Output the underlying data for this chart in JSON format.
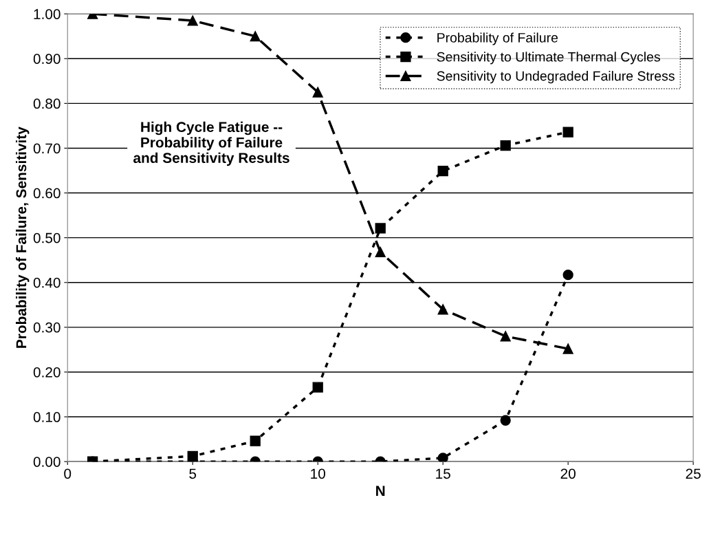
{
  "chart_data": {
    "type": "line",
    "xlabel": "N",
    "ylabel": "Probability of Failure, Sensitivity",
    "x": [
      1,
      5,
      7.5,
      10,
      12.5,
      15,
      17.5,
      20
    ],
    "series": [
      {
        "name": "Probability of Failure",
        "color": "#000000",
        "marker": "circle",
        "line_style": "dotted",
        "values": [
          0,
          0,
          0,
          0,
          0,
          0.008,
          0.092,
          0.417
        ]
      },
      {
        "name": "Sensitivity to Ultimate Thermal Cycles",
        "color": "#000000",
        "marker": "square",
        "line_style": "dotted",
        "values": [
          0,
          0.012,
          0.046,
          0.166,
          0.521,
          0.649,
          0.706,
          0.736
        ]
      },
      {
        "name": "Sensitivity to Undegraded Failure Stress",
        "color": "#000000",
        "marker": "triangle",
        "line_style": "dashed",
        "values": [
          1.0,
          0.985,
          0.95,
          0.825,
          0.468,
          0.34,
          0.28,
          0.252
        ]
      }
    ],
    "xlim": [
      0,
      25
    ],
    "xticks": [
      0,
      5,
      10,
      15,
      20,
      25
    ],
    "ylim": [
      0,
      1
    ],
    "yticks": [
      {
        "value": 0,
        "label": "0.00"
      },
      {
        "value": 0.1,
        "label": "0.10"
      },
      {
        "value": 0.2,
        "label": "0.20"
      },
      {
        "value": 0.3,
        "label": "0.30"
      },
      {
        "value": 0.4,
        "label": "0.40"
      },
      {
        "value": 0.5,
        "label": "0.50"
      },
      {
        "value": 0.6,
        "label": "0.60"
      },
      {
        "value": 0.7,
        "label": "0.70"
      },
      {
        "value": 0.8,
        "label": "0.80"
      },
      {
        "value": 0.9,
        "label": "0.90"
      },
      {
        "value": 1,
        "label": "1.00"
      }
    ],
    "grid": "y",
    "legend": "top right",
    "annotations": [
      "High Cycle Fatigue --\nProbability of Failure\nand Sensitivity Results"
    ]
  }
}
